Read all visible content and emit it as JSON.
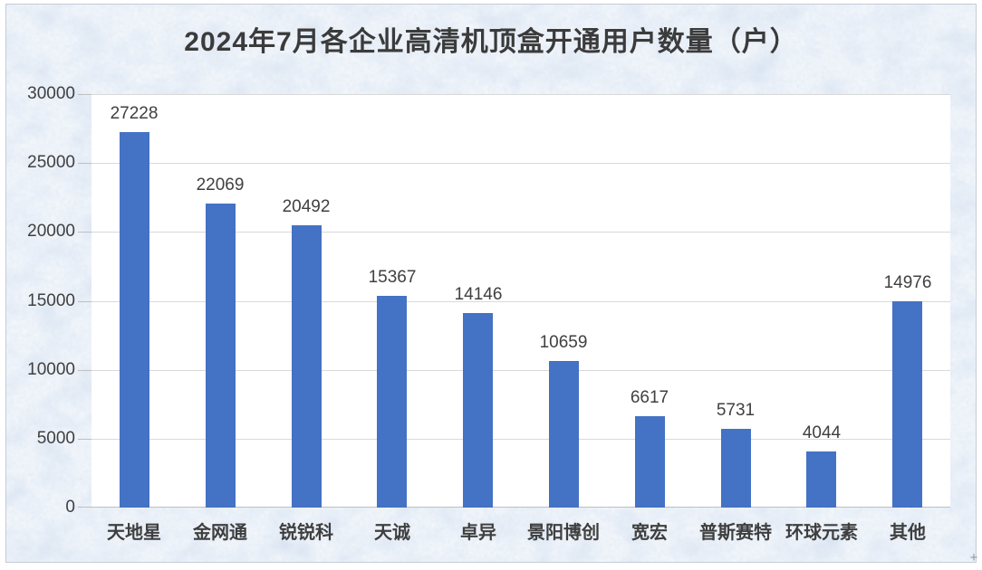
{
  "chart_data": {
    "type": "bar",
    "title": "2024年7月各企业高清机顶盒开通用户数量（户）",
    "categories": [
      "天地星",
      "金网通",
      "锐锐科",
      "天诚",
      "卓异",
      "景阳博创",
      "宽宏",
      "普斯赛特",
      "环球元素",
      "其他"
    ],
    "values": [
      27228,
      22069,
      20492,
      15367,
      14146,
      10659,
      6617,
      5731,
      4044,
      14976
    ],
    "data_labels": [
      "27228",
      "22069",
      "20492",
      "15367",
      "14146",
      "10659",
      "6617",
      "5731",
      "4044",
      "14976"
    ],
    "xlabel": "",
    "ylabel": "",
    "ylim": [
      0,
      30000
    ],
    "ytick_step": 5000,
    "yticks": [
      "0",
      "5000",
      "10000",
      "15000",
      "20000",
      "25000",
      "30000"
    ],
    "grid": true,
    "legend": false,
    "colors": {
      "bar": "#4472c4",
      "gridline": "#d9d9d9",
      "axis_line": "#bfbfbf",
      "label_text": "#404040",
      "title_text": "#3b3b3b",
      "plot_background": "#ffffff",
      "canvas_base": "#d9e4f1"
    }
  },
  "cursor": {
    "glyph": "+"
  }
}
